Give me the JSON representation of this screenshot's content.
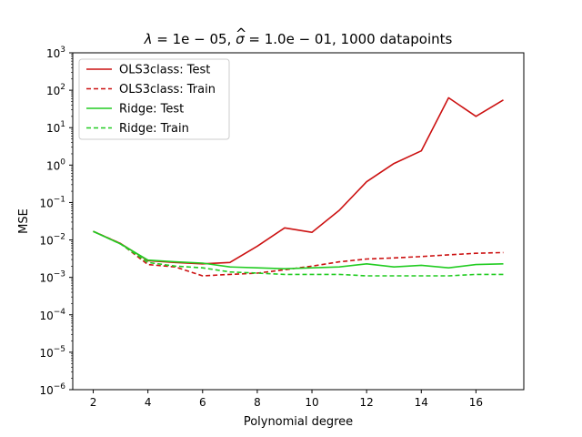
{
  "chart_data": {
    "type": "line",
    "title": "λ = 1e − 05, σ̂ = 1.0e − 01, 1000 datapoints",
    "title_parts": {
      "lambda": "λ",
      "eq1": " = 1e − 05, ",
      "sigma": "σ",
      "hat": "^",
      "eq2": " = 1.0e − 01, 1000 datapoints"
    },
    "xlabel": "Polynomial degree",
    "ylabel": "MSE",
    "xlim": [
      1.25,
      17.75
    ],
    "ylim": [
      1e-06,
      1000
    ],
    "yscale": "log",
    "grid": false,
    "legend_position": "top-left",
    "x_ticks": [
      2,
      4,
      6,
      8,
      10,
      12,
      14,
      16
    ],
    "y_ticks": [
      {
        "value": 1e-06,
        "base": "10",
        "exp": "−6"
      },
      {
        "value": 1e-05,
        "base": "10",
        "exp": "−5"
      },
      {
        "value": 0.0001,
        "base": "10",
        "exp": "−4"
      },
      {
        "value": 0.001,
        "base": "10",
        "exp": "−3"
      },
      {
        "value": 0.01,
        "base": "10",
        "exp": "−2"
      },
      {
        "value": 0.1,
        "base": "10",
        "exp": "−1"
      },
      {
        "value": 1,
        "base": "10",
        "exp": "0"
      },
      {
        "value": 10,
        "base": "10",
        "exp": "1"
      },
      {
        "value": 100,
        "base": "10",
        "exp": "2"
      },
      {
        "value": 1000,
        "base": "10",
        "exp": "3"
      }
    ],
    "x": [
      2,
      3,
      4,
      5,
      6,
      7,
      8,
      9,
      10,
      11,
      12,
      13,
      14,
      15,
      16,
      17
    ],
    "series": [
      {
        "name": "OLS3class: Test",
        "color": "#cc1111",
        "dash": "solid",
        "values": [
          0.017,
          0.008,
          0.0028,
          0.0025,
          0.0023,
          0.0025,
          0.0068,
          0.021,
          0.016,
          0.062,
          0.36,
          1.1,
          2.4,
          63,
          20,
          55
        ]
      },
      {
        "name": "OLS3class: Train",
        "color": "#cc1111",
        "dash": "dashed",
        "values": [
          0.017,
          0.008,
          0.0022,
          0.0019,
          0.0011,
          0.0012,
          0.0013,
          0.0016,
          0.002,
          0.0026,
          0.0031,
          0.0033,
          0.0036,
          0.004,
          0.0044,
          0.0046
        ]
      },
      {
        "name": "Ridge: Test",
        "color": "#22cc22",
        "dash": "solid",
        "values": [
          0.017,
          0.0078,
          0.0029,
          0.0026,
          0.0024,
          0.0019,
          0.0018,
          0.0017,
          0.0018,
          0.0019,
          0.0023,
          0.0019,
          0.0021,
          0.0018,
          0.0022,
          0.0023
        ]
      },
      {
        "name": "Ridge: Train",
        "color": "#22cc22",
        "dash": "dashed",
        "values": [
          0.017,
          0.0078,
          0.0025,
          0.002,
          0.0018,
          0.0014,
          0.0013,
          0.0012,
          0.0012,
          0.0012,
          0.0011,
          0.0011,
          0.0011,
          0.0011,
          0.0012,
          0.0012
        ]
      }
    ]
  }
}
